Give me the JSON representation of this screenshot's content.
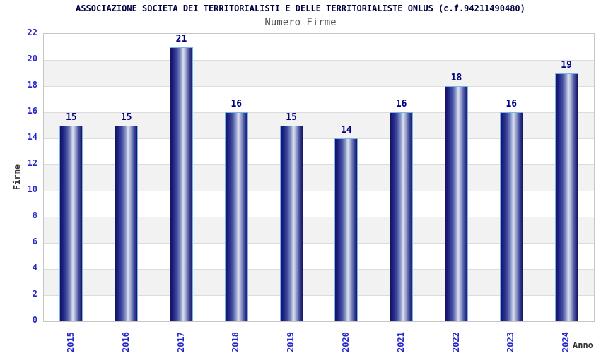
{
  "chart_data": {
    "type": "bar",
    "title": "ASSOCIAZIONE SOCIETA DEI TERRITORIALISTI E DELLE TERRITORIALISTE ONLUS (c.f.94211490480)",
    "subtitle": "Numero Firme",
    "xlabel": "Anno",
    "ylabel": "Firme",
    "categories": [
      "2015",
      "2016",
      "2017",
      "2018",
      "2019",
      "2020",
      "2021",
      "2022",
      "2023",
      "2024"
    ],
    "values": [
      15,
      15,
      21,
      16,
      15,
      14,
      16,
      18,
      16,
      19
    ],
    "ylim": [
      0,
      22
    ],
    "ytick_step": 2,
    "grid": "horizontal, alternating shaded bands every 2 units",
    "legend": "none",
    "colors": {
      "bar_dark": "#14145f",
      "bar_highlight": "#dfe3f0",
      "bar_border": "#79b6e8",
      "tick_label": "#2626cc",
      "value_label": "#000080",
      "title": "#000040",
      "subtitle": "#555555",
      "axis_title": "#333333",
      "band_shade": "#f2f2f2",
      "grid_line": "#dcdcdc",
      "plot_border": "#c6c6c6"
    }
  }
}
